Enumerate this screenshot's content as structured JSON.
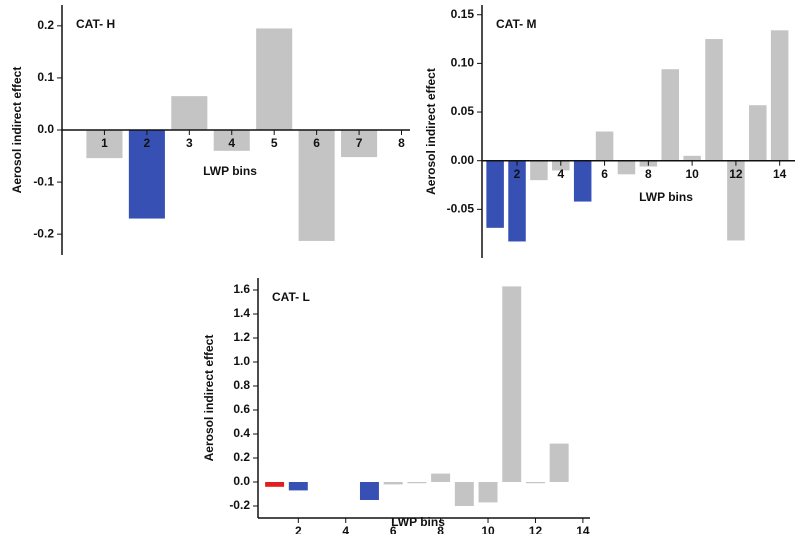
{
  "chart_data": [
    {
      "type": "bar",
      "title": "CAT- H",
      "ylabel": "Aerosol indirect effect",
      "xlabel": "LWP bins",
      "x": [
        1,
        2,
        3,
        4,
        5,
        6,
        7
      ],
      "values": [
        -0.054,
        -0.17,
        0.065,
        -0.04,
        0.195,
        -0.213,
        -0.052
      ],
      "colors": [
        "#c4c4c4",
        "#3651b3",
        "#c4c4c4",
        "#c4c4c4",
        "#c4c4c4",
        "#c4c4c4",
        "#c4c4c4"
      ],
      "xlim": [
        0,
        8.2
      ],
      "xticks": [
        1,
        2,
        3,
        4,
        5,
        6,
        7,
        8
      ],
      "ylim": [
        -0.24,
        0.24
      ],
      "yticks": [
        0.2,
        0.1,
        {
          "value": 0,
          "label": "0.0"
        },
        -0.1,
        -0.2
      ]
    },
    {
      "type": "bar",
      "title": "CAT- M",
      "ylabel": "Aerosol indirect effect",
      "xlabel": "LWP bins",
      "x": [
        1,
        2,
        3,
        4,
        5,
        6,
        7,
        8,
        9,
        10,
        11,
        12,
        13,
        14
      ],
      "values": [
        -0.069,
        -0.083,
        -0.02,
        -0.01,
        -0.042,
        0.03,
        -0.014,
        -0.006,
        0.094,
        0.005,
        0.125,
        -0.082,
        0.057,
        0.134
      ],
      "colors": [
        "#3651b3",
        "#3651b3",
        "#c4c4c4",
        "#c4c4c4",
        "#3651b3",
        "#c4c4c4",
        "#c4c4c4",
        "#c4c4c4",
        "#c4c4c4",
        "#c4c4c4",
        "#c4c4c4",
        "#c4c4c4",
        "#c4c4c4",
        "#c4c4c4"
      ],
      "xlim": [
        0.4,
        14.7
      ],
      "xticks": [
        2,
        4,
        6,
        8,
        10,
        12,
        14
      ],
      "ylim": [
        -0.1,
        0.16
      ],
      "yticks": [
        0.15,
        {
          "value": 0.1,
          "label": "0.10"
        },
        0.05,
        {
          "value": 0,
          "label": "0.00"
        },
        -0.05
      ]
    },
    {
      "type": "bar",
      "title": "CAT- L",
      "ylabel": "Aerosol indirect effect",
      "xlabel": "LWP bins",
      "x": [
        1,
        2,
        3,
        4,
        5,
        6,
        7,
        8,
        9,
        10,
        11,
        12,
        13
      ],
      "values": [
        -0.04,
        -0.07,
        0,
        0,
        -0.15,
        -0.02,
        -0.01,
        0.07,
        -0.2,
        -0.17,
        1.63,
        -0.01,
        0.32
      ],
      "colors": [
        "#e02020",
        "#3651b3",
        "#c4c4c4",
        "#c4c4c4",
        "#3651b3",
        "#c4c4c4",
        "#c4c4c4",
        "#c4c4c4",
        "#c4c4c4",
        "#c4c4c4",
        "#c4c4c4",
        "#c4c4c4",
        "#c4c4c4"
      ],
      "xlim": [
        0.3,
        14.3
      ],
      "xticks": [
        2,
        4,
        6,
        8,
        10,
        12,
        14
      ],
      "ylim": [
        -0.3,
        1.7
      ],
      "yticks": [
        1.6,
        1.4,
        1.2,
        {
          "value": 1,
          "label": "1.0"
        },
        0.8,
        0.6,
        0.4,
        0.2,
        {
          "value": 0,
          "label": "0.0"
        },
        -0.2
      ]
    }
  ]
}
